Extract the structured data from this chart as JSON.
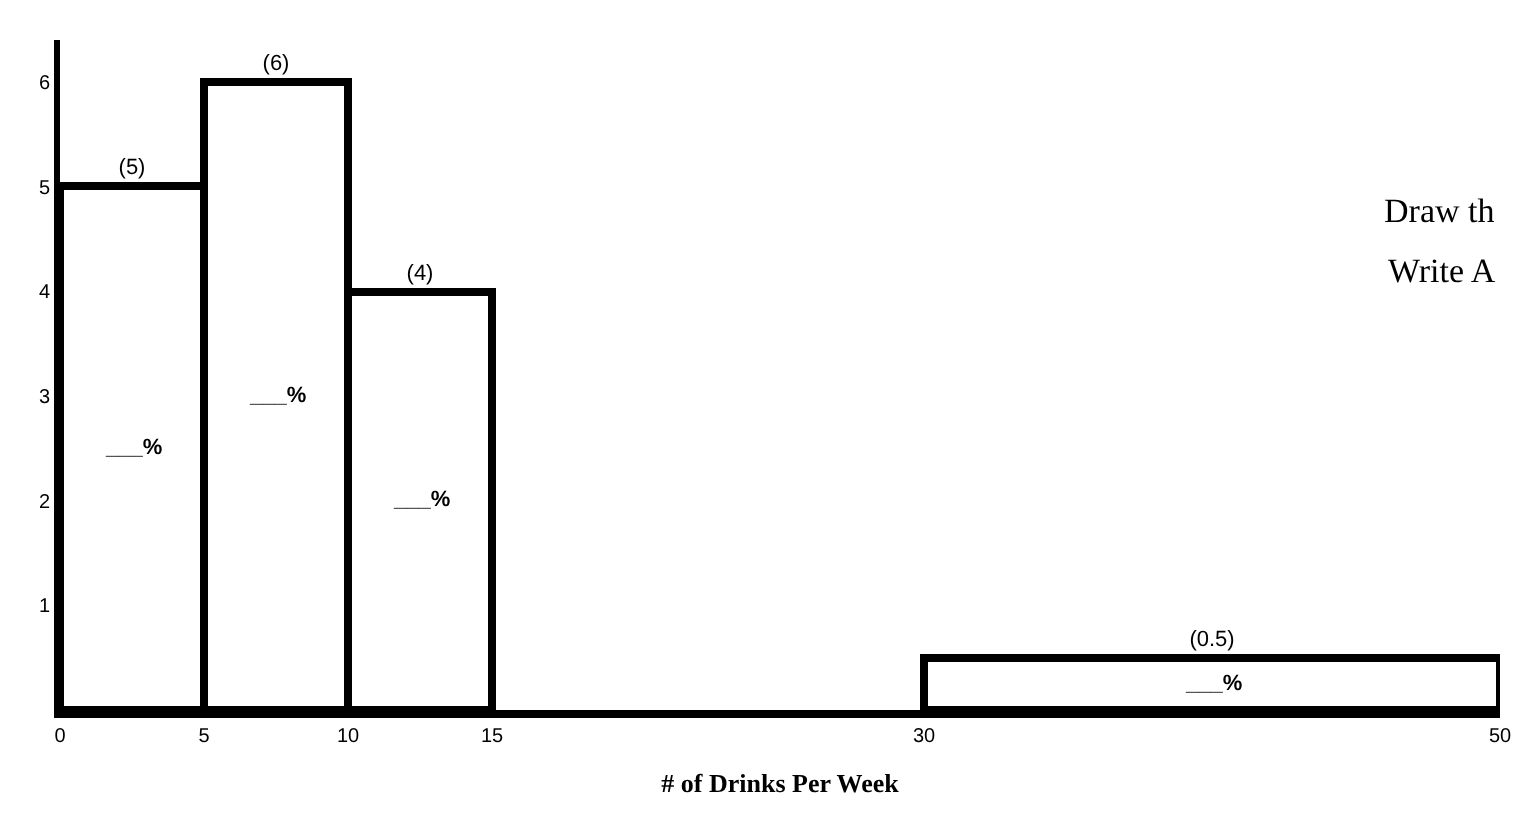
{
  "chart_data": {
    "type": "histogram",
    "xlabel": "# of Drinks Per Week",
    "bins": [
      0,
      5,
      10,
      15,
      30,
      50
    ],
    "values": [
      5,
      6,
      4,
      null,
      0.5
    ],
    "value_labels": [
      "(5)",
      "(6)",
      "(4)",
      null,
      "(0.5)"
    ],
    "color": "#ffffff",
    "xlim": [
      0,
      50
    ],
    "xticks": [
      0,
      5,
      10,
      15,
      30,
      50
    ],
    "ylim": [
      0,
      6.4
    ],
    "yticks": [
      1,
      2,
      3,
      4,
      5,
      6
    ],
    "annotations": [
      "___%",
      "___%",
      "___%",
      "___%",
      "Draw th",
      "Write A"
    ]
  }
}
